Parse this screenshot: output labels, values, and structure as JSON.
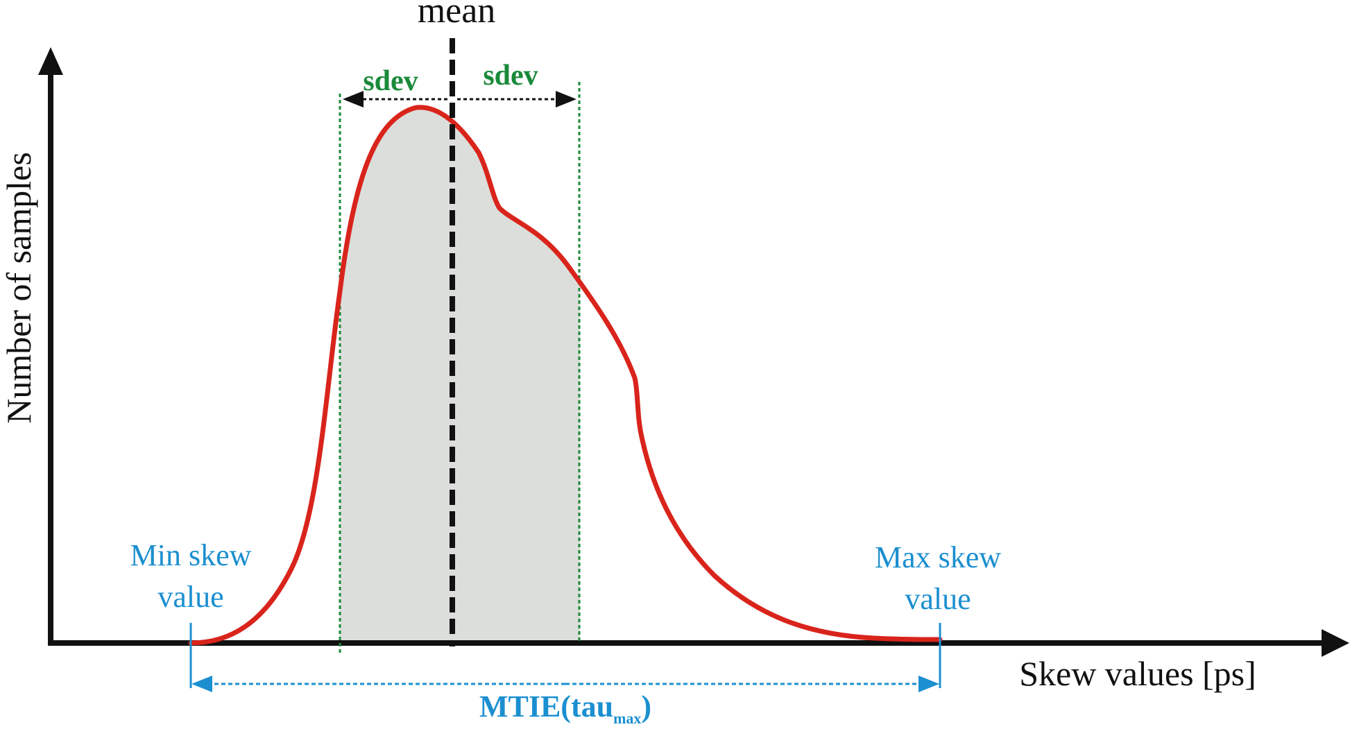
{
  "title": "mean",
  "axes": {
    "y_label": "Number of samples",
    "x_label": "Skew values [ps]"
  },
  "annotations": {
    "sdev_left": "sdev",
    "sdev_right": "sdev",
    "min_skew_line1": "Min skew",
    "min_skew_line2": "value",
    "max_skew_line1": "Max skew",
    "max_skew_line2": "value",
    "mtie_main": "MTIE(tau",
    "mtie_sub": "max",
    "mtie_close": ")"
  },
  "colors": {
    "curve": "#d9241c",
    "fill": "#dcdedb",
    "axis": "#111111",
    "sdev": "#1a8a3a",
    "skew": "#1b8fd0"
  }
}
